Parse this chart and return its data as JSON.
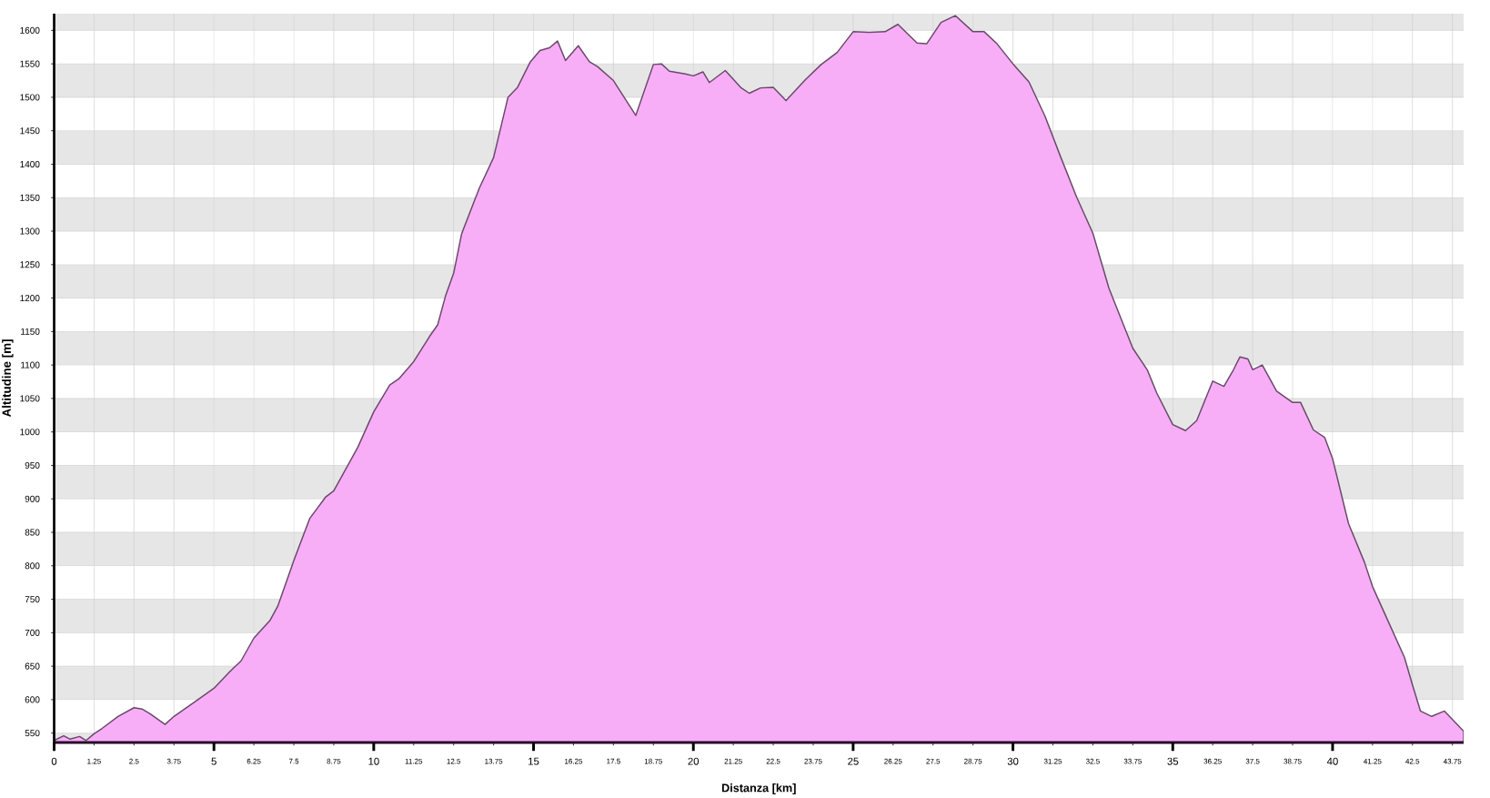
{
  "chart_data": {
    "type": "area",
    "xlabel": "Distanza [km]",
    "ylabel": "Altitudine [m]",
    "color": "#f7aef7",
    "x": [
      0,
      0.3,
      0.5,
      0.8,
      1,
      1.25,
      1.5,
      2,
      2.5,
      2.75,
      3,
      3.47,
      3.75,
      4.5,
      5,
      5.5,
      5.85,
      6.25,
      6.75,
      7,
      7.5,
      8,
      8.5,
      8.75,
      9.5,
      10,
      10.5,
      10.8,
      11.25,
      11.75,
      12,
      12.25,
      12.5,
      12.75,
      13.3,
      13.75,
      14.2,
      14.5,
      14.9,
      15.2,
      15.5,
      15.75,
      16,
      16.4,
      16.75,
      17,
      17.5,
      18.2,
      18.75,
      19,
      19.25,
      19.75,
      20,
      20.3,
      20.5,
      21,
      21.5,
      21.75,
      22.1,
      22.5,
      22.9,
      23.5,
      24,
      24.5,
      25,
      25.5,
      26,
      26.4,
      27,
      27.3,
      27.75,
      28.2,
      28.75,
      29.1,
      29.5,
      30,
      30.5,
      31,
      31.5,
      32,
      32.5,
      33,
      33.75,
      34.2,
      34.5,
      35,
      35.4,
      35.75,
      36.25,
      36.6,
      36.9,
      37.1,
      37.35,
      37.5,
      37.8,
      38.25,
      38.75,
      39,
      39.4,
      39.75,
      40,
      40.5,
      41,
      41.25,
      41.75,
      42.25,
      42.5,
      42.75,
      43.1,
      43.5,
      44.1
    ],
    "values": [
      539,
      546,
      541,
      545,
      539,
      549,
      557,
      575,
      588,
      586,
      579,
      563,
      575,
      600,
      617,
      642,
      658,
      692,
      718,
      740,
      808,
      871,
      903,
      912,
      977,
      1030,
      1070,
      1080,
      1105,
      1143,
      1160,
      1204,
      1237,
      1296,
      1364,
      1410,
      1500,
      1515,
      1553,
      1570,
      1574,
      1584,
      1555,
      1577,
      1553,
      1546,
      1525,
      1473,
      1549,
      1550,
      1539,
      1535,
      1532,
      1538,
      1522,
      1540,
      1514,
      1506,
      1514,
      1515,
      1495,
      1526,
      1549,
      1567,
      1598,
      1597,
      1598,
      1609,
      1581,
      1580,
      1612,
      1622,
      1598,
      1598,
      1580,
      1550,
      1523,
      1472,
      1410,
      1350,
      1297,
      1215,
      1125,
      1093,
      1058,
      1011,
      1002,
      1017,
      1076,
      1068,
      1093,
      1112,
      1109,
      1093,
      1100,
      1061,
      1044,
      1044,
      1003,
      992,
      960,
      863,
      805,
      769,
      716,
      663,
      622,
      583,
      575,
      583,
      553
    ],
    "xlim": [
      0,
      44.1
    ],
    "ylim": [
      536,
      1625
    ],
    "xticks": [
      0,
      1.25,
      2.5,
      3.75,
      5,
      6.25,
      7.5,
      8.75,
      10,
      11.25,
      12.5,
      13.75,
      15,
      16.25,
      17.5,
      18.75,
      20,
      21.25,
      22.5,
      23.75,
      25,
      26.25,
      27.5,
      28.75,
      30,
      31.25,
      32.5,
      33.75,
      35,
      36.25,
      37.5,
      38.75,
      40,
      41.25,
      42.5,
      43.75
    ],
    "yticks": [
      550,
      600,
      650,
      700,
      750,
      800,
      850,
      900,
      950,
      1000,
      1050,
      1100,
      1150,
      1200,
      1250,
      1300,
      1350,
      1400,
      1450,
      1500,
      1550,
      1600
    ],
    "grid": true
  }
}
